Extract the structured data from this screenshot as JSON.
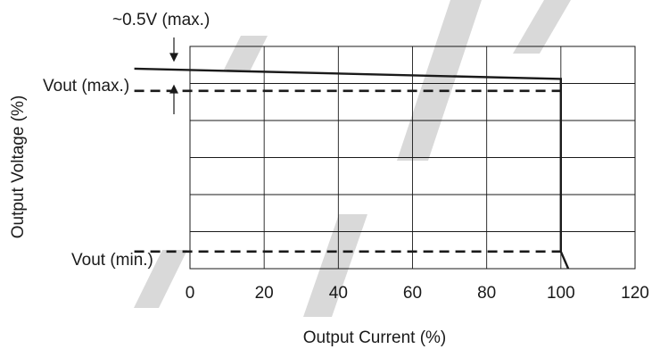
{
  "chart_data": {
    "type": "line",
    "title": "",
    "xlabel": "Output Current (%)",
    "ylabel": "Output Voltage (%)",
    "xlim": [
      0,
      120
    ],
    "x_ticks": [
      "0",
      "20",
      "40",
      "60",
      "80",
      "100",
      "120"
    ],
    "grid": true,
    "series": [
      {
        "style": "solid",
        "x": [
          -15,
          100,
          100,
          102
        ],
        "y": [
          5.35,
          5.05,
          0,
          -0.5
        ]
      },
      {
        "style": "dashed",
        "x": [
          -15,
          100
        ],
        "y": [
          4.7,
          4.7
        ]
      },
      {
        "style": "dashed",
        "x": [
          -15,
          100
        ],
        "y": [
          0,
          0
        ]
      }
    ],
    "annotations": {
      "drop": "~0.5V (max.)",
      "vout_max": "Vout (max.)",
      "vout_min": "Vout (min.)"
    },
    "colors": {
      "line": "#1a1a1a",
      "grid": "#1a1a1a",
      "watermark": "#d9d9d9"
    }
  }
}
